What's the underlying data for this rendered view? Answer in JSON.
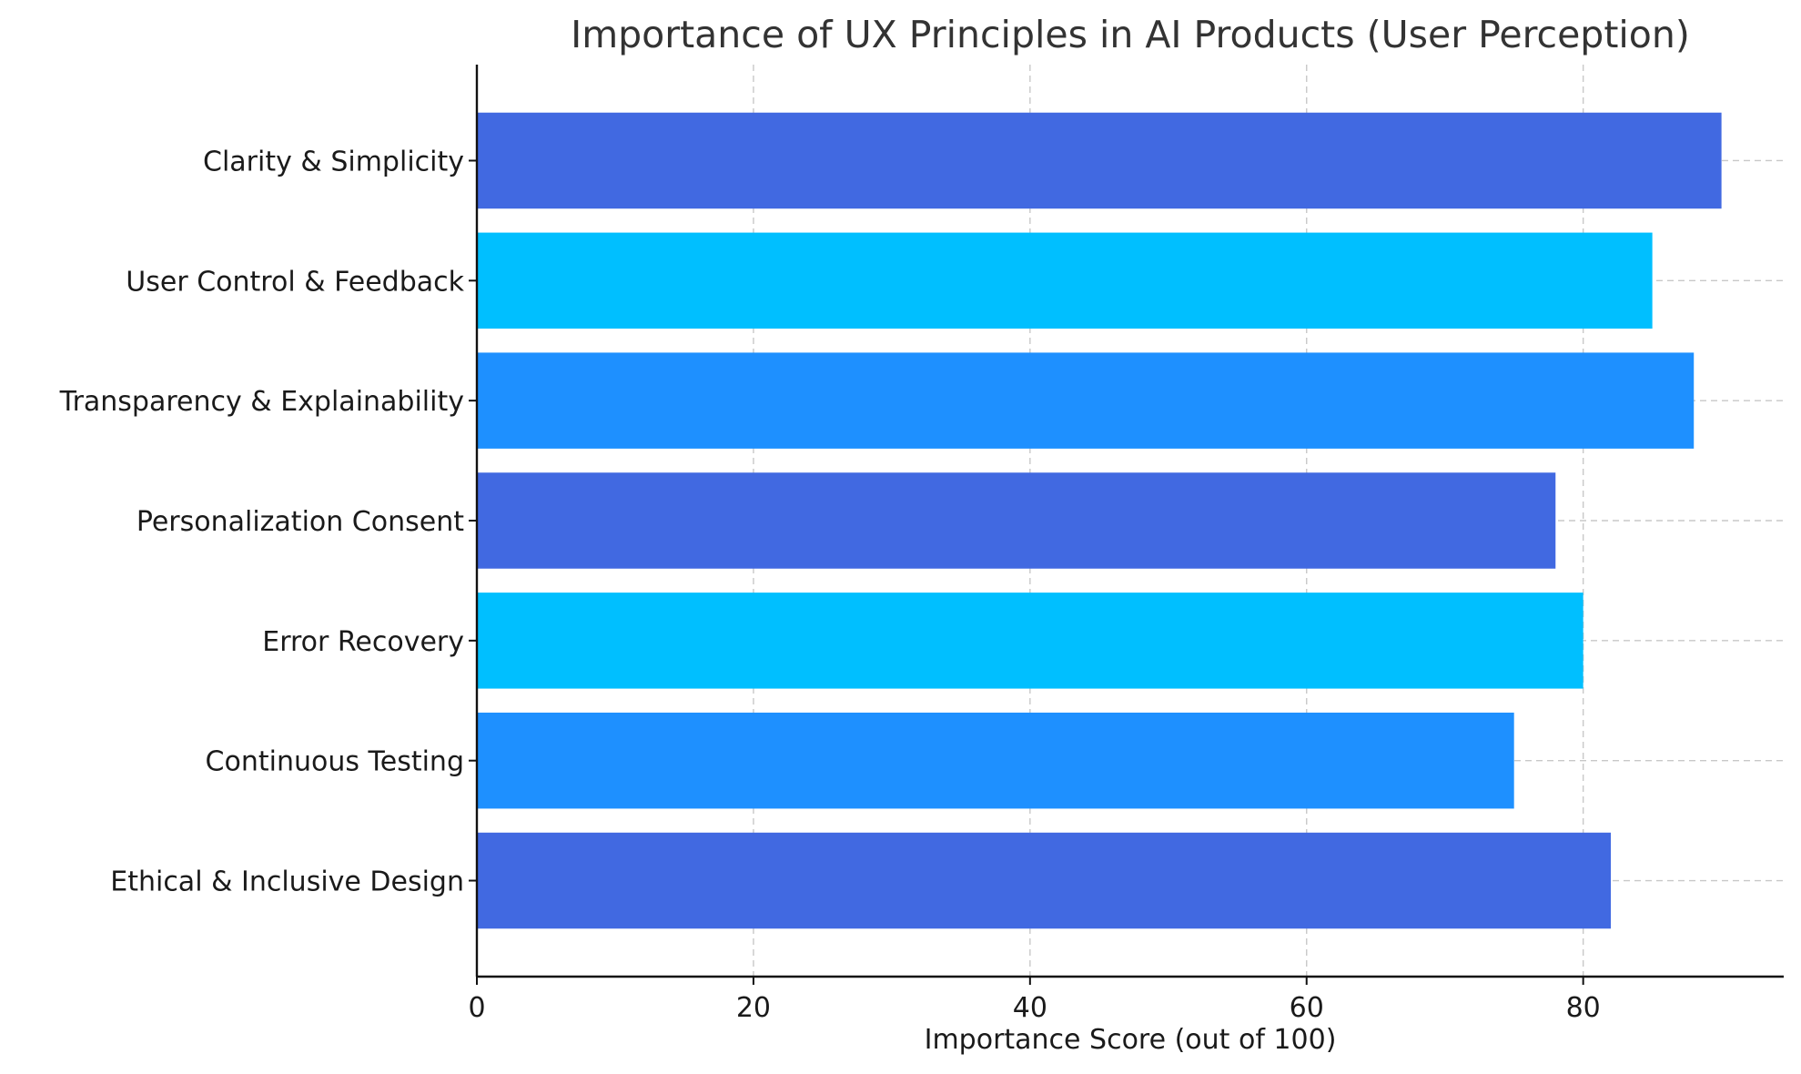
{
  "chart_data": {
    "type": "bar",
    "orientation": "horizontal",
    "title": "Importance of UX Principles in AI Products (User Perception)",
    "xlabel": "Importance Score (out of 100)",
    "ylabel": "",
    "xlim": [
      0,
      94.5
    ],
    "xticks": [
      0,
      20,
      40,
      60,
      80
    ],
    "grid": true,
    "categories": [
      "Clarity & Simplicity",
      "User Control & Feedback",
      "Transparency & Explainability",
      "Personalization Consent",
      "Error Recovery",
      "Continuous Testing",
      "Ethical & Inclusive Design"
    ],
    "values": [
      90,
      85,
      88,
      78,
      80,
      75,
      82
    ],
    "colors": [
      "#4169E1",
      "#00BFFF",
      "#1E90FF",
      "#4169E1",
      "#00BFFF",
      "#1E90FF",
      "#4169E1"
    ]
  }
}
